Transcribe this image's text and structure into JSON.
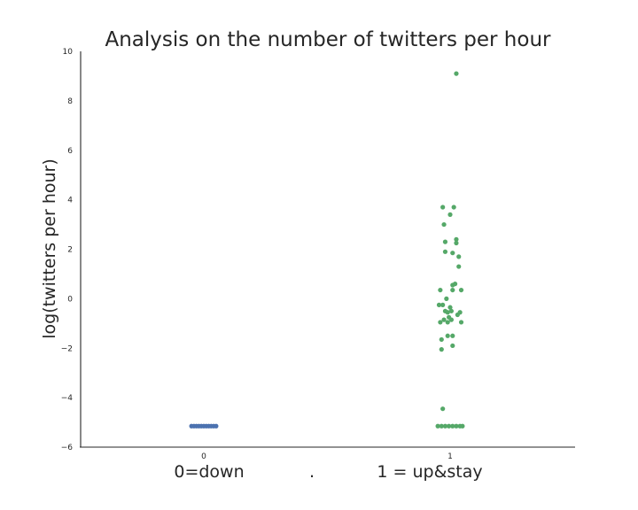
{
  "chart_data": {
    "type": "scatter",
    "subtype": "strip",
    "title": "Analysis on the number of twitters per hour",
    "ylabel": "log(twitters per hour)",
    "xlabel_left": "0=down",
    "xlabel_sep": ".",
    "xlabel_right": "1 = up&stay",
    "categories": [
      "0",
      "1"
    ],
    "ylim": [
      -6,
      10
    ],
    "yticks": [
      -6,
      -4,
      -2,
      0,
      2,
      4,
      6,
      8,
      10
    ],
    "grid": false,
    "legend": "none",
    "series": [
      {
        "category": "0",
        "color": "#4c72b0",
        "points": [
          [
            -0.1,
            -5.15
          ],
          [
            -0.08,
            -5.15
          ],
          [
            -0.06,
            -5.15
          ],
          [
            -0.04,
            -5.15
          ],
          [
            -0.02,
            -5.15
          ],
          [
            0.0,
            -5.15
          ],
          [
            0.02,
            -5.15
          ],
          [
            0.04,
            -5.15
          ],
          [
            0.06,
            -5.15
          ],
          [
            0.08,
            -5.15
          ],
          [
            0.1,
            -5.15
          ]
        ]
      },
      {
        "category": "1",
        "color": "#55a868",
        "points": [
          [
            -0.1,
            -5.15
          ],
          [
            -0.07,
            -5.15
          ],
          [
            -0.04,
            -5.15
          ],
          [
            -0.01,
            -5.15
          ],
          [
            0.02,
            -5.15
          ],
          [
            0.05,
            -5.15
          ],
          [
            0.08,
            -5.15
          ],
          [
            0.1,
            -5.15
          ],
          [
            0.05,
            9.1
          ],
          [
            -0.06,
            3.7
          ],
          [
            0.03,
            3.7
          ],
          [
            0.0,
            3.4
          ],
          [
            -0.05,
            3.0
          ],
          [
            0.05,
            2.4
          ],
          [
            0.05,
            2.25
          ],
          [
            -0.04,
            2.3
          ],
          [
            -0.04,
            1.9
          ],
          [
            0.02,
            1.85
          ],
          [
            0.07,
            1.7
          ],
          [
            0.07,
            1.3
          ],
          [
            0.04,
            0.6
          ],
          [
            0.02,
            0.55
          ],
          [
            -0.08,
            0.35
          ],
          [
            0.02,
            0.35
          ],
          [
            0.09,
            0.35
          ],
          [
            -0.03,
            0.0
          ],
          [
            -0.09,
            -0.25
          ],
          [
            -0.06,
            -0.25
          ],
          [
            0.0,
            -0.35
          ],
          [
            -0.04,
            -0.5
          ],
          [
            -0.02,
            -0.55
          ],
          [
            0.01,
            -0.5
          ],
          [
            0.08,
            -0.55
          ],
          [
            0.06,
            -0.65
          ],
          [
            -0.01,
            -0.75
          ],
          [
            0.01,
            -0.85
          ],
          [
            -0.05,
            -0.85
          ],
          [
            -0.02,
            -0.95
          ],
          [
            -0.08,
            -0.95
          ],
          [
            0.09,
            -0.95
          ],
          [
            -0.02,
            -1.5
          ],
          [
            0.02,
            -1.5
          ],
          [
            -0.07,
            -1.65
          ],
          [
            0.02,
            -1.9
          ],
          [
            -0.07,
            -2.05
          ],
          [
            -0.06,
            -4.45
          ]
        ]
      }
    ]
  }
}
